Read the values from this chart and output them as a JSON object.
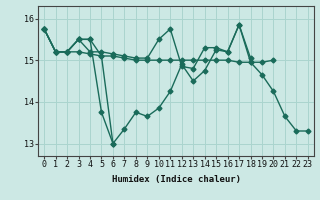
{
  "xlabel": "Humidex (Indice chaleur)",
  "background_color": "#cce8e4",
  "grid_color": "#aad4ce",
  "line_color": "#1a6b5a",
  "xlim": [
    -0.5,
    23.5
  ],
  "ylim": [
    12.7,
    16.3
  ],
  "yticks": [
    13,
    14,
    15,
    16
  ],
  "xticks": [
    0,
    1,
    2,
    3,
    4,
    5,
    6,
    7,
    8,
    9,
    10,
    11,
    12,
    13,
    14,
    15,
    16,
    17,
    18,
    19,
    20,
    21,
    22,
    23
  ],
  "series": [
    [
      15.75,
      15.2,
      15.2,
      15.5,
      15.5,
      13.75,
      13.0,
      13.35,
      13.75,
      13.65,
      13.85,
      14.25,
      14.9,
      14.5,
      14.75,
      15.25,
      15.2,
      15.85,
      14.95,
      14.65,
      14.25,
      13.65,
      13.3,
      13.3
    ],
    [
      15.75,
      15.2,
      15.2,
      15.2,
      15.15,
      15.1,
      15.1,
      15.05,
      15.0,
      15.0,
      15.0,
      15.0,
      15.0,
      15.0,
      15.0,
      15.0,
      15.0,
      14.95,
      14.95,
      14.95,
      15.0,
      null,
      null,
      null
    ],
    [
      15.75,
      15.2,
      15.2,
      15.5,
      15.2,
      15.2,
      15.15,
      15.1,
      15.05,
      15.05,
      15.5,
      15.75,
      14.85,
      14.8,
      15.3,
      15.3,
      15.2,
      15.85,
      15.05,
      null,
      null,
      null,
      null,
      null
    ],
    [
      15.75,
      15.2,
      15.2,
      15.5,
      15.5,
      15.1,
      13.0,
      null,
      null,
      null,
      null,
      null,
      null,
      null,
      null,
      null,
      null,
      null,
      null,
      null,
      null,
      null,
      null,
      null
    ]
  ],
  "marker_size": 2.5,
  "line_width": 1.0,
  "label_fontsize": 6.5,
  "tick_fontsize": 6.0
}
